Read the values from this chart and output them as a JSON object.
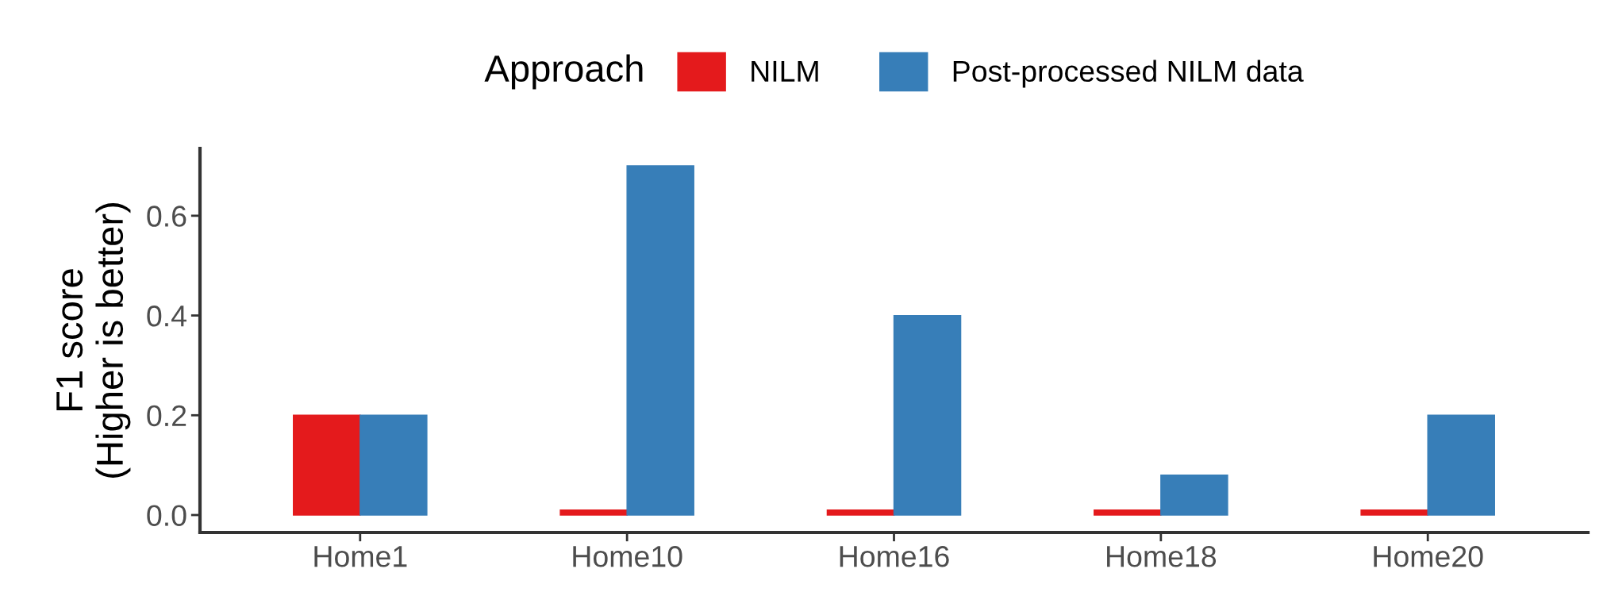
{
  "chart_data": {
    "type": "bar",
    "ylabel": "F1 score\n(Higher is better)",
    "legend_title": "Approach",
    "categories": [
      "Home1",
      "Home10",
      "Home16",
      "Home18",
      "Home20"
    ],
    "series": [
      {
        "name": "NILM",
        "color": "#e41a1c",
        "values": [
          0.2,
          0.01,
          0.01,
          0.01,
          0.01
        ]
      },
      {
        "name": "Post-processed NILM data",
        "color": "#377eb8",
        "values": [
          0.2,
          0.7,
          0.4,
          0.08,
          0.2
        ]
      }
    ],
    "ylim": [
      -0.035,
      0.735
    ],
    "yticks": [
      {
        "value": 0,
        "label": "0.0"
      },
      {
        "value": 0.2,
        "label": "0.2"
      },
      {
        "value": 0.4,
        "label": "0.4"
      },
      {
        "value": 0.6,
        "label": "0.6"
      }
    ],
    "grid": false,
    "legend": "top"
  }
}
